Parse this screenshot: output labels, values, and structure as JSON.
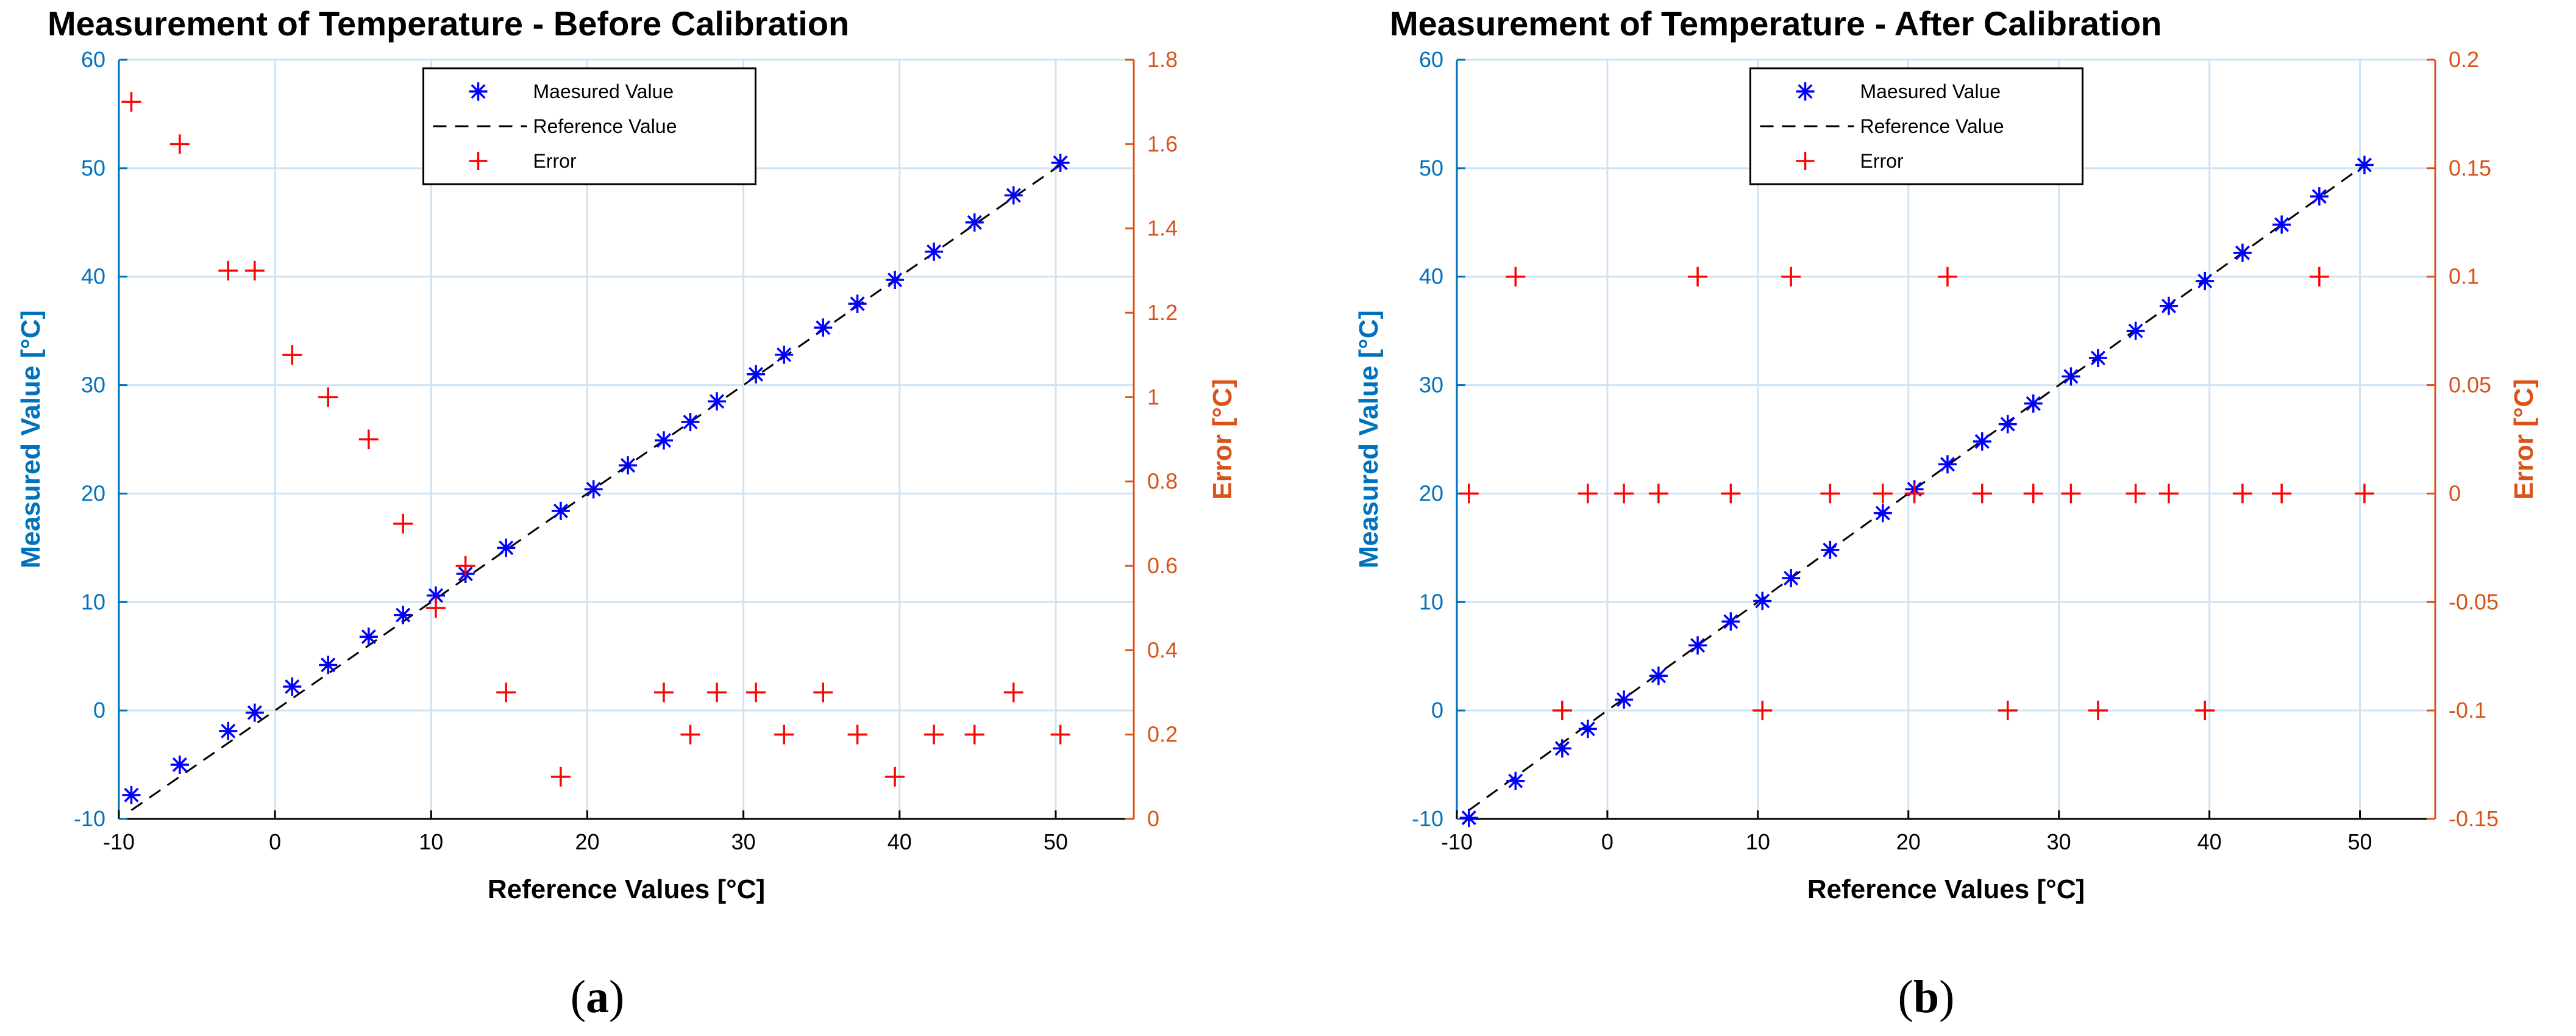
{
  "colors": {
    "left_axis": "#0072BD",
    "right_axis": "#D95319",
    "measured": "#0000FF",
    "error": "#FF0000",
    "reference": "#000000",
    "grid": "#CFE3F3"
  },
  "chart_data": [
    {
      "type": "scatter",
      "title": "Measurement of Temperature - Before Calibration",
      "xlabel": "Reference Values [°C]",
      "ylabel": "Measured Value [°C]",
      "y2label": "Error [°C]",
      "caption_open": "(",
      "caption_letter": "a",
      "caption_close": ")",
      "xlim": [
        -10,
        55
      ],
      "ylim": [
        -10,
        60
      ],
      "y2lim": [
        0,
        1.8
      ],
      "xticks": [
        -10,
        0,
        10,
        20,
        30,
        40,
        50
      ],
      "yticks": [
        -10,
        0,
        10,
        20,
        30,
        40,
        50,
        60
      ],
      "y2ticks": [
        0,
        0.2,
        0.4,
        0.6,
        0.8,
        1,
        1.2,
        1.4,
        1.6,
        1.8
      ],
      "legend": {
        "position": "top-center",
        "entries": [
          "Maesured Value",
          "Reference Value",
          "Error"
        ]
      },
      "reference": {
        "x": [
          -9.2,
          50.3
        ],
        "y": [
          -9.2,
          50.3
        ]
      },
      "measured": {
        "x": [
          -9.2,
          -6.1,
          -3.0,
          -1.3,
          1.1,
          3.4,
          6.0,
          8.2,
          10.3,
          12.2,
          14.8,
          18.3,
          20.4,
          22.6,
          24.9,
          26.6,
          28.3,
          30.8,
          32.6,
          35.1,
          37.3,
          39.7,
          42.2,
          44.8,
          47.3,
          50.3
        ],
        "y": [
          -7.8,
          -5.0,
          -1.9,
          -0.2,
          2.2,
          4.2,
          6.8,
          8.8,
          10.6,
          12.6,
          15.0,
          18.4,
          20.4,
          22.6,
          24.9,
          26.6,
          28.5,
          31.0,
          32.8,
          35.3,
          37.5,
          39.7,
          42.3,
          45.0,
          47.5,
          50.5
        ]
      },
      "error": {
        "x": [
          -9.2,
          -6.1,
          -3.0,
          -1.3,
          1.1,
          3.4,
          6.0,
          8.2,
          10.3,
          12.2,
          14.8,
          18.3,
          24.9,
          26.6,
          28.3,
          30.8,
          32.6,
          35.1,
          37.3,
          39.7,
          42.2,
          44.8,
          47.3,
          50.3
        ],
        "y": [
          1.7,
          1.6,
          1.3,
          1.3,
          1.1,
          1.0,
          0.9,
          0.7,
          0.5,
          0.6,
          0.3,
          0.1,
          0.3,
          0.2,
          0.3,
          0.3,
          0.2,
          0.3,
          0.2,
          0.1,
          0.2,
          0.2,
          0.3,
          0.2
        ]
      }
    },
    {
      "type": "scatter",
      "title": "Measurement of Temperature - After Calibration",
      "xlabel": "Reference Values [°C]",
      "ylabel": "Measured Value [°C]",
      "y2label": "Error [°C]",
      "caption_open": "(",
      "caption_letter": "b",
      "caption_close": ")",
      "xlim": [
        -10,
        55
      ],
      "ylim": [
        -10,
        60
      ],
      "y2lim": [
        -0.15,
        0.2
      ],
      "xticks": [
        -10,
        0,
        10,
        20,
        30,
        40,
        50
      ],
      "yticks": [
        -10,
        0,
        10,
        20,
        30,
        40,
        50,
        60
      ],
      "y2ticks": [
        -0.15,
        -0.1,
        -0.05,
        0,
        0.05,
        0.1,
        0.15,
        0.2
      ],
      "legend": {
        "position": "top-center",
        "entries": [
          "Maesured Value",
          "Reference Value",
          "Error"
        ]
      },
      "reference": {
        "x": [
          -9.2,
          50.3
        ],
        "y": [
          -9.2,
          50.3
        ]
      },
      "measured": {
        "x": [
          -9.2,
          -6.1,
          -3.0,
          -1.3,
          1.1,
          3.4,
          6.0,
          8.2,
          10.3,
          12.2,
          14.8,
          18.3,
          20.4,
          22.6,
          24.9,
          26.6,
          28.3,
          30.8,
          32.6,
          35.1,
          37.3,
          39.7,
          42.2,
          44.8,
          47.3,
          50.3
        ],
        "y": [
          -9.9,
          -6.5,
          -3.5,
          -1.7,
          1.0,
          3.2,
          6.0,
          8.2,
          10.1,
          12.2,
          14.8,
          18.2,
          20.4,
          22.7,
          24.8,
          26.4,
          28.3,
          30.8,
          32.5,
          35.0,
          37.3,
          39.6,
          42.2,
          44.8,
          47.4,
          50.3
        ]
      },
      "error": {
        "x": [
          -9.2,
          -6.1,
          -3.0,
          -1.3,
          1.1,
          3.4,
          6.0,
          8.2,
          10.3,
          12.2,
          14.8,
          18.3,
          20.4,
          22.6,
          24.9,
          26.6,
          28.3,
          30.8,
          32.6,
          35.1,
          37.3,
          39.7,
          42.2,
          44.8,
          47.3,
          50.3
        ],
        "y": [
          0,
          0.1,
          -0.1,
          0,
          0,
          0,
          0.1,
          0,
          -0.1,
          0.1,
          0,
          0,
          0,
          0.1,
          0,
          -0.1,
          0,
          0,
          -0.1,
          0,
          0,
          -0.1,
          0,
          0,
          0.1,
          0
        ]
      }
    }
  ]
}
